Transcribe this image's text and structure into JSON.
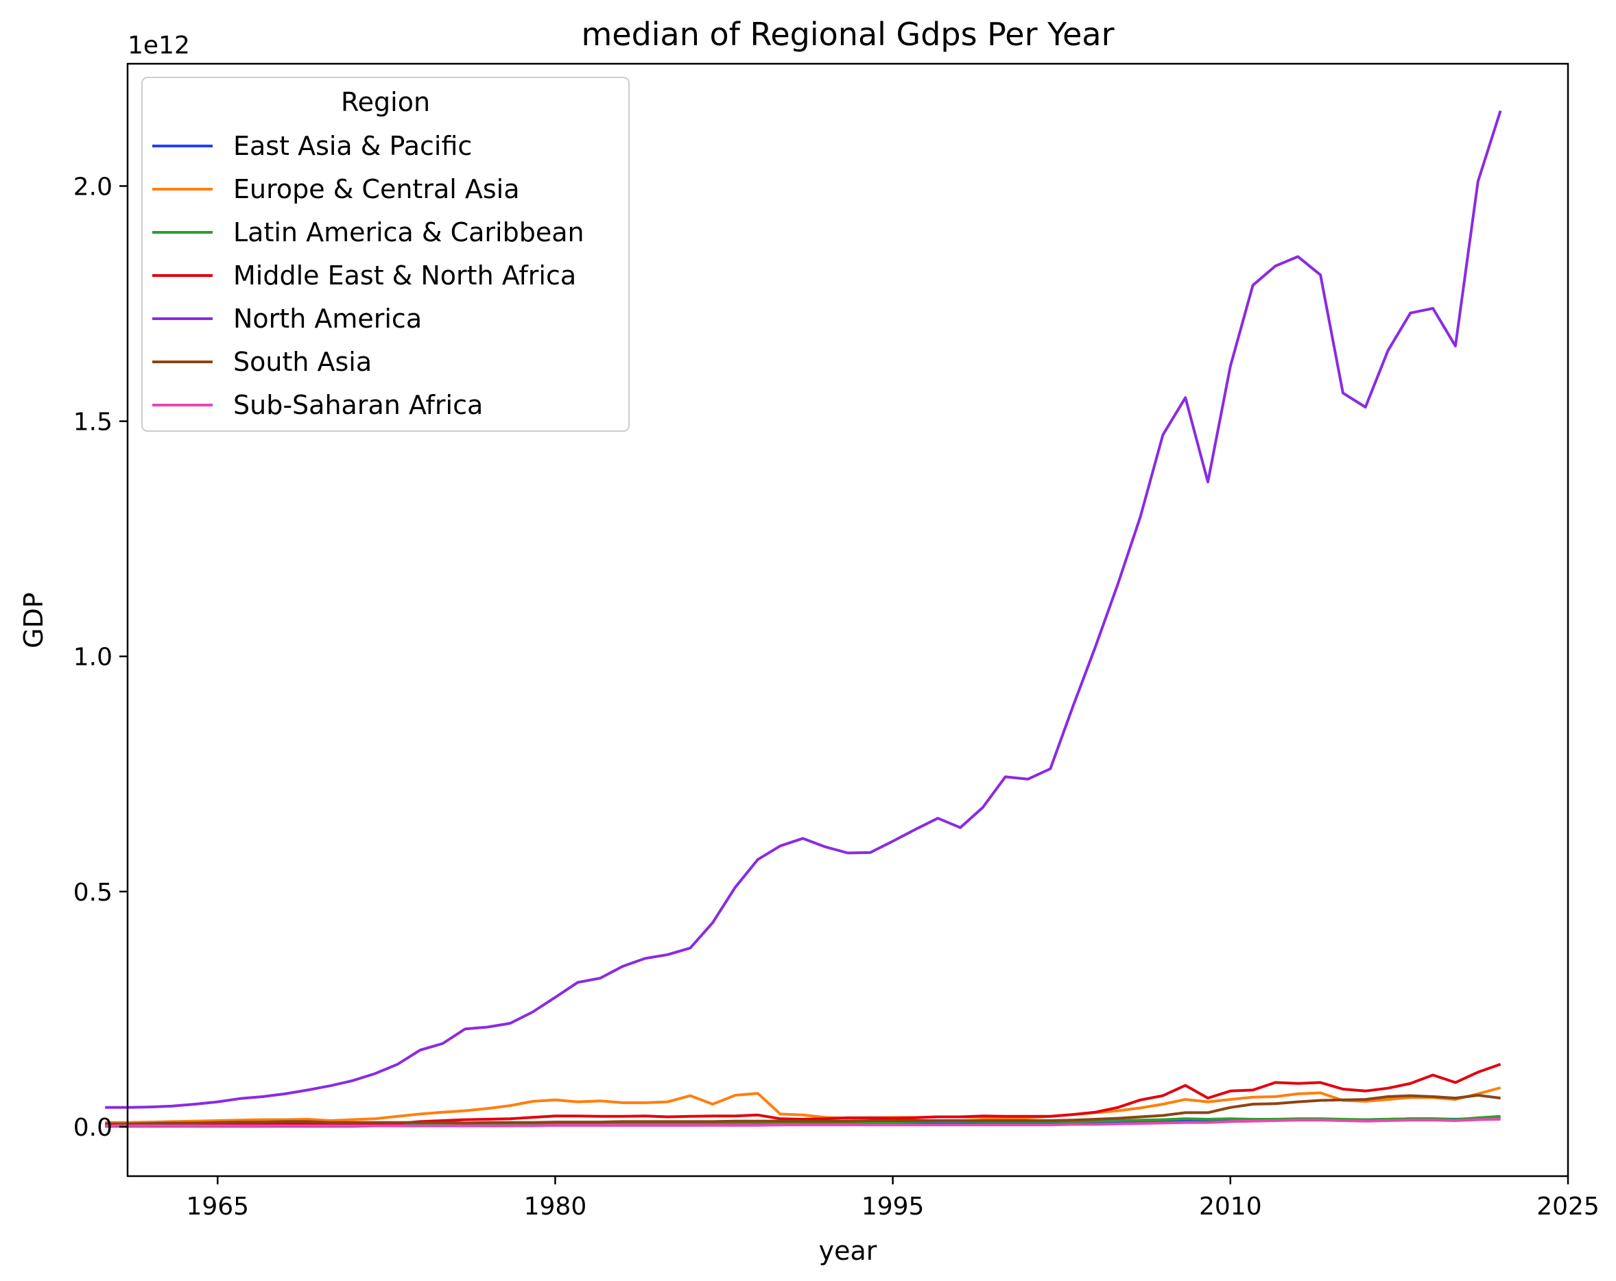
{
  "chart_data": {
    "type": "line",
    "title": "median of Regional Gdps Per Year",
    "xlabel": "year",
    "ylabel": "GDP",
    "y_offset_label": "1e12",
    "xlim": [
      1961,
      2025
    ],
    "ylim": [
      -0.105,
      2.26
    ],
    "x_ticks": [
      1965,
      1980,
      1995,
      2010,
      2025
    ],
    "y_ticks": [
      0.0,
      0.5,
      1.0,
      1.5,
      2.0
    ],
    "x_tick_labels": [
      "1965",
      "1980",
      "1995",
      "2010",
      "2025"
    ],
    "y_tick_labels": [
      "0.0",
      "0.5",
      "1.0",
      "1.5",
      "2.0"
    ],
    "grid": false,
    "legend": {
      "title": "Region",
      "placement": "upper-left"
    },
    "x": [
      1960,
      1961,
      1962,
      1963,
      1964,
      1965,
      1966,
      1967,
      1968,
      1969,
      1970,
      1971,
      1972,
      1973,
      1974,
      1975,
      1976,
      1977,
      1978,
      1979,
      1980,
      1981,
      1982,
      1983,
      1984,
      1985,
      1986,
      1987,
      1988,
      1989,
      1990,
      1991,
      1992,
      1993,
      1994,
      1995,
      1996,
      1997,
      1998,
      1999,
      2000,
      2001,
      2002,
      2003,
      2004,
      2005,
      2006,
      2007,
      2008,
      2009,
      2010,
      2011,
      2012,
      2013,
      2014,
      2015,
      2016,
      2017,
      2018,
      2019,
      2020,
      2021,
      2022
    ],
    "series": [
      {
        "name": "East Asia & Pacific",
        "color": "#1f3fff",
        "values": [
          0.001,
          0.001,
          0.001,
          0.001,
          0.001,
          0.001,
          0.001,
          0.001,
          0.001,
          0.001,
          0.001,
          0.001,
          0.002,
          0.002,
          0.002,
          0.002,
          0.002,
          0.002,
          0.002,
          0.003,
          0.003,
          0.003,
          0.003,
          0.003,
          0.003,
          0.003,
          0.003,
          0.004,
          0.004,
          0.004,
          0.004,
          0.005,
          0.005,
          0.005,
          0.005,
          0.006,
          0.006,
          0.006,
          0.006,
          0.006,
          0.007,
          0.007,
          0.007,
          0.008,
          0.008,
          0.009,
          0.01,
          0.011,
          0.012,
          0.012,
          0.014,
          0.015,
          0.016,
          0.016,
          0.016,
          0.015,
          0.015,
          0.016,
          0.017,
          0.017,
          0.016,
          0.018,
          0.019
        ]
      },
      {
        "name": "Europe & Central Asia",
        "color": "#ff7f0e",
        "values": [
          0.009,
          0.009,
          0.01,
          0.011,
          0.012,
          0.013,
          0.014,
          0.015,
          0.015,
          0.016,
          0.013,
          0.015,
          0.017,
          0.022,
          0.027,
          0.031,
          0.034,
          0.039,
          0.045,
          0.054,
          0.057,
          0.053,
          0.055,
          0.051,
          0.051,
          0.053,
          0.066,
          0.048,
          0.067,
          0.071,
          0.027,
          0.025,
          0.02,
          0.018,
          0.019,
          0.02,
          0.02,
          0.021,
          0.021,
          0.019,
          0.018,
          0.019,
          0.022,
          0.026,
          0.03,
          0.034,
          0.04,
          0.048,
          0.058,
          0.053,
          0.058,
          0.063,
          0.064,
          0.07,
          0.072,
          0.056,
          0.054,
          0.058,
          0.062,
          0.062,
          0.058,
          0.07,
          0.083
        ]
      },
      {
        "name": "Latin America & Caribbean",
        "color": "#2ca02c",
        "values": [
          0.002,
          0.002,
          0.002,
          0.002,
          0.002,
          0.002,
          0.003,
          0.003,
          0.003,
          0.003,
          0.003,
          0.004,
          0.004,
          0.004,
          0.005,
          0.005,
          0.006,
          0.006,
          0.006,
          0.007,
          0.008,
          0.008,
          0.008,
          0.007,
          0.007,
          0.007,
          0.008,
          0.008,
          0.008,
          0.009,
          0.009,
          0.01,
          0.01,
          0.01,
          0.01,
          0.01,
          0.011,
          0.012,
          0.012,
          0.011,
          0.011,
          0.011,
          0.011,
          0.011,
          0.012,
          0.013,
          0.014,
          0.015,
          0.017,
          0.016,
          0.017,
          0.016,
          0.016,
          0.017,
          0.017,
          0.016,
          0.015,
          0.016,
          0.017,
          0.017,
          0.015,
          0.019,
          0.022
        ]
      },
      {
        "name": "Middle East & North Africa",
        "color": "#e3000f",
        "values": [
          0.004,
          0.004,
          0.004,
          0.005,
          0.005,
          0.005,
          0.006,
          0.006,
          0.006,
          0.007,
          0.005,
          0.005,
          0.006,
          0.007,
          0.011,
          0.013,
          0.015,
          0.016,
          0.017,
          0.02,
          0.023,
          0.023,
          0.022,
          0.022,
          0.023,
          0.021,
          0.022,
          0.023,
          0.023,
          0.025,
          0.017,
          0.016,
          0.017,
          0.019,
          0.019,
          0.018,
          0.019,
          0.021,
          0.021,
          0.023,
          0.022,
          0.022,
          0.022,
          0.026,
          0.031,
          0.041,
          0.057,
          0.066,
          0.088,
          0.061,
          0.076,
          0.078,
          0.094,
          0.092,
          0.094,
          0.08,
          0.076,
          0.082,
          0.092,
          0.11,
          0.094,
          0.116,
          0.133
        ]
      },
      {
        "name": "North America",
        "color": "#8a2be2",
        "values": [
          0.041,
          0.041,
          0.042,
          0.044,
          0.048,
          0.053,
          0.06,
          0.064,
          0.07,
          0.078,
          0.087,
          0.098,
          0.113,
          0.133,
          0.163,
          0.177,
          0.208,
          0.212,
          0.22,
          0.244,
          0.275,
          0.307,
          0.316,
          0.341,
          0.358,
          0.366,
          0.38,
          0.434,
          0.509,
          0.568,
          0.597,
          0.613,
          0.595,
          0.582,
          0.583,
          0.607,
          0.632,
          0.656,
          0.636,
          0.679,
          0.744,
          0.739,
          0.761,
          0.893,
          1.02,
          1.154,
          1.297,
          1.471,
          1.55,
          1.371,
          1.617,
          1.789,
          1.83,
          1.85,
          1.811,
          1.56,
          1.53,
          1.65,
          1.73,
          1.74,
          1.66,
          2.01,
          2.16
        ]
      },
      {
        "name": "South Asia",
        "color": "#8b4513",
        "values": [
          0.006,
          0.006,
          0.007,
          0.008,
          0.008,
          0.009,
          0.01,
          0.01,
          0.011,
          0.011,
          0.009,
          0.009,
          0.009,
          0.009,
          0.009,
          0.009,
          0.008,
          0.009,
          0.009,
          0.009,
          0.01,
          0.01,
          0.01,
          0.011,
          0.011,
          0.011,
          0.011,
          0.011,
          0.012,
          0.012,
          0.012,
          0.012,
          0.012,
          0.012,
          0.013,
          0.013,
          0.013,
          0.013,
          0.013,
          0.013,
          0.013,
          0.013,
          0.013,
          0.014,
          0.016,
          0.018,
          0.021,
          0.024,
          0.03,
          0.03,
          0.041,
          0.048,
          0.049,
          0.053,
          0.056,
          0.057,
          0.058,
          0.064,
          0.066,
          0.064,
          0.061,
          0.067,
          0.061
        ]
      },
      {
        "name": "Sub-Saharan Africa",
        "color": "#e847b4",
        "values": [
          0.002,
          0.002,
          0.002,
          0.002,
          0.002,
          0.002,
          0.002,
          0.002,
          0.002,
          0.002,
          0.002,
          0.002,
          0.002,
          0.002,
          0.002,
          0.002,
          0.002,
          0.002,
          0.002,
          0.002,
          0.003,
          0.003,
          0.003,
          0.003,
          0.003,
          0.003,
          0.003,
          0.003,
          0.003,
          0.003,
          0.004,
          0.004,
          0.004,
          0.004,
          0.004,
          0.004,
          0.004,
          0.004,
          0.004,
          0.004,
          0.004,
          0.004,
          0.004,
          0.005,
          0.005,
          0.006,
          0.007,
          0.008,
          0.009,
          0.009,
          0.011,
          0.012,
          0.013,
          0.014,
          0.014,
          0.013,
          0.012,
          0.013,
          0.014,
          0.014,
          0.013,
          0.015,
          0.016
        ]
      }
    ]
  }
}
